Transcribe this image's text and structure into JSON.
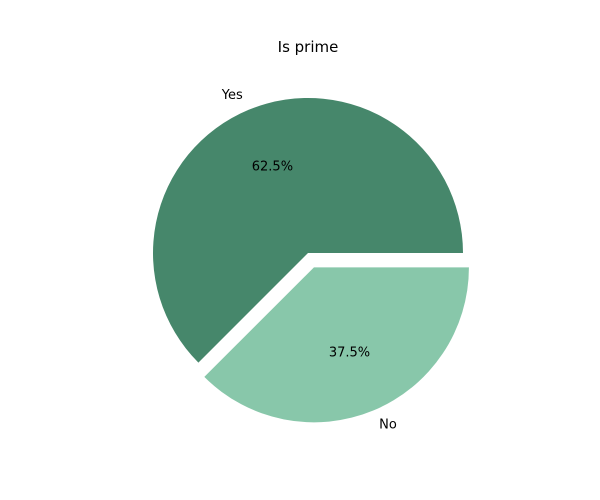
{
  "chart_data": {
    "type": "pie",
    "title": "Is prime",
    "slices": [
      {
        "label": "Yes",
        "value": 62.5,
        "autopct": "62.5%",
        "color": "#46876b",
        "exploded": false
      },
      {
        "label": "No",
        "value": 37.5,
        "autopct": "37.5%",
        "color": "#88c7aa",
        "exploded": true
      }
    ]
  }
}
